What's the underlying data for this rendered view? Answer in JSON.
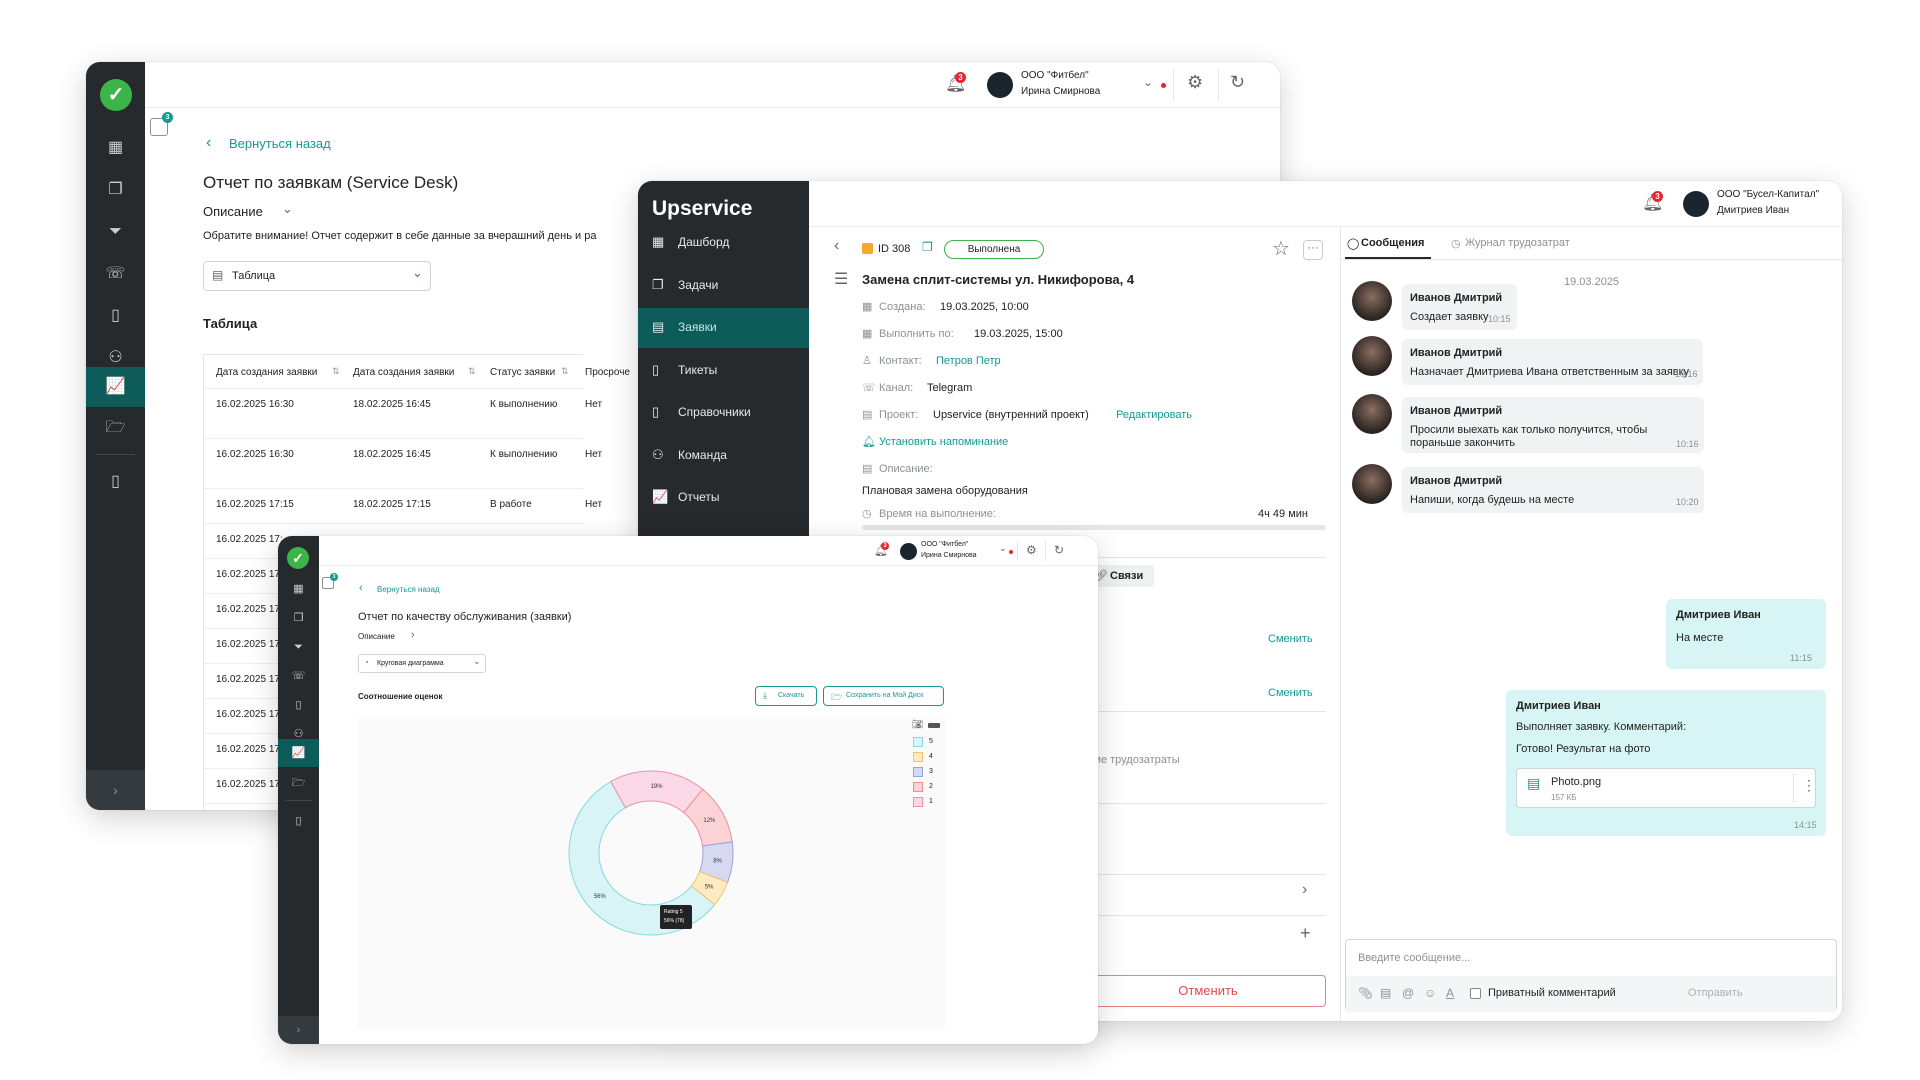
{
  "w1": {
    "header": {
      "org": "ООО \"Фитбел\"",
      "user": "Ирина Смирнова",
      "notif_count": "3"
    },
    "side_badge": "3",
    "back": "Вернуться назад",
    "title": "Отчет по заявкам (Service Desk)",
    "desc_label": "Описание",
    "desc_text": "Обратите внимание! Отчет содержит в себе данные за вчерашний день и ра",
    "select": "Таблица",
    "table_title": "Таблица",
    "columns": [
      "Дата создания заявки",
      "Дата создания заявки",
      "Статус заявки",
      "Просроче"
    ],
    "rows": [
      [
        "16.02.2025 16:30",
        "18.02.2025 16:45",
        "К выполнению",
        "Нет"
      ],
      [
        "16.02.2025 16:30",
        "18.02.2025 16:45",
        "К выполнению",
        "Нет"
      ],
      [
        "16.02.2025 17:15",
        "18.02.2025 17:15",
        "В работе",
        "Нет"
      ],
      [
        "16.02.2025 17:",
        "",
        "",
        ""
      ],
      [
        "16.02.2025 17:",
        "",
        "",
        ""
      ],
      [
        "16.02.2025 17:",
        "",
        "",
        ""
      ],
      [
        "16.02.2025 17:",
        "",
        "",
        ""
      ],
      [
        "16.02.2025 17:",
        "",
        "",
        ""
      ],
      [
        "16.02.2025 17:",
        "",
        "",
        ""
      ],
      [
        "16.02.2025 17:",
        "",
        "",
        ""
      ],
      [
        "16.02.2025 17:",
        "",
        "",
        ""
      ]
    ]
  },
  "w2": {
    "logo": "Upservice",
    "nav": [
      "Дашборд",
      "Задачи",
      "Заявки",
      "Тикеты",
      "Справочники",
      "Команда",
      "Отчеты"
    ],
    "header": {
      "org": "ООО \"Бусел-Капитал\"",
      "user": "Дмитриев Иван",
      "notif_count": "3"
    },
    "ticket": {
      "id": "ID 308",
      "status": "Выполнена",
      "title": "Замена сплит-системы ул. Никифорова, 4",
      "created_label": "Создана:",
      "created": "19.03.2025, 10:00",
      "due_label": "Выполнить по:",
      "due": "19.03.2025, 15:00",
      "contact_label": "Контакт:",
      "contact": "Петров Петр",
      "channel_label": "Канал:",
      "channel": "Telegram",
      "project_label": "Проект:",
      "project": "Upservice (внутренний проект)",
      "edit": "Редактировать",
      "reminder": "Установить напоминание",
      "desc_label": "Описание:",
      "desc": "Плановая замена оборудования",
      "time_label": "Время на выполнение:",
      "time": "4ч 49 мин",
      "links": "Связи",
      "change1": "Сменить",
      "change2": "Сменить",
      "labor_text": "кие трудозатраты",
      "cancel": "Отменить"
    },
    "tabs": [
      "Сообщения",
      "Журнал трудозатрат"
    ],
    "chat_date": "19.03.2025",
    "messages": [
      {
        "name": "Иванов Дмитрий",
        "text": "Создает заявку",
        "time": "10:15"
      },
      {
        "name": "Иванов Дмитрий",
        "text": "Назначает Дмитриева Ивана ответственным за заявку",
        "time": "10:16"
      },
      {
        "name": "Иванов Дмитрий",
        "text": "Просили выехать как только получится, чтобы",
        "text2": "пораньше закончить",
        "time": "10:16"
      },
      {
        "name": "Иванов Дмитрий",
        "text": "Напиши, когда будешь на месте",
        "time": "10:20"
      }
    ],
    "my_messages": [
      {
        "name": "Дмитриев Иван",
        "text": "На месте",
        "time": "11:15"
      },
      {
        "name": "Дмитриев Иван",
        "text": "Выполняет заявку. Комментарий:",
        "text2": "Готово! Результат на фото",
        "file": "Photo.png",
        "size": "157 КБ",
        "time": "14:15"
      }
    ],
    "input_placeholder": "Введите сообщение...",
    "private": "Приватный комментарий",
    "send": "Отправить"
  },
  "w3": {
    "header": {
      "org": "ООО \"Фитбел\"",
      "user": "Ирина Смирнова",
      "notif_count": "3"
    },
    "side_badge": "3",
    "back": "Вернуться назад",
    "title": "Отчет по качеству обслуживания (заявки)",
    "desc_label": "Описание",
    "select": "Круговая диаграмма",
    "section": "Соотношение оценок",
    "download": "Скачать",
    "save": "Сохранить на Мой Диск",
    "tooltip_title": "Rating 5",
    "tooltip_value": "56% (78)"
  },
  "chart_data": {
    "type": "pie",
    "categories": [
      "5",
      "1",
      "2",
      "3",
      "4"
    ],
    "values": [
      56,
      19,
      12,
      8,
      5
    ],
    "labels": [
      "56%",
      "19%",
      "12%",
      "8%",
      "5%"
    ],
    "colors": [
      "#d8f4f6",
      "#fbd9e6",
      "#fbd3d6",
      "#d7d9f2",
      "#fdebc4"
    ],
    "strokes": [
      "#86d9de",
      "#f08bb3",
      "#f18d96",
      "#9ca1e3",
      "#f5c36b"
    ],
    "legend": [
      "5",
      "4",
      "3",
      "2",
      "1"
    ],
    "legend_colors": [
      "#d8f4f6",
      "#fdebc4",
      "#d7d9f2",
      "#fbd3d6",
      "#fbd9e6"
    ],
    "legend_strokes": [
      "#86d9de",
      "#f5c36b",
      "#9ca1e3",
      "#f18d96",
      "#f08bb3"
    ]
  }
}
